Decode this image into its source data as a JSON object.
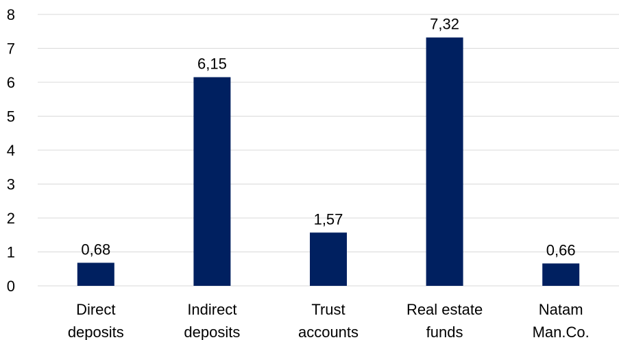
{
  "chart_data": {
    "type": "bar",
    "categories": [
      [
        "Direct",
        "deposits"
      ],
      [
        "Indirect",
        "deposits"
      ],
      [
        "Trust",
        "accounts"
      ],
      [
        "Real estate",
        "funds"
      ],
      [
        "Natam",
        "Man.Co."
      ]
    ],
    "values": [
      0.68,
      6.15,
      1.57,
      7.32,
      0.66
    ],
    "value_labels": [
      "0,68",
      "6,15",
      "1,57",
      "7,32",
      "0,66"
    ],
    "ylim": [
      0,
      8
    ],
    "yticks": [
      0,
      1,
      2,
      3,
      4,
      5,
      6,
      7,
      8
    ],
    "grid": true,
    "bar_color": "#002060",
    "grid_color": "#d9d9d9",
    "title": "",
    "xlabel": "",
    "ylabel": ""
  }
}
